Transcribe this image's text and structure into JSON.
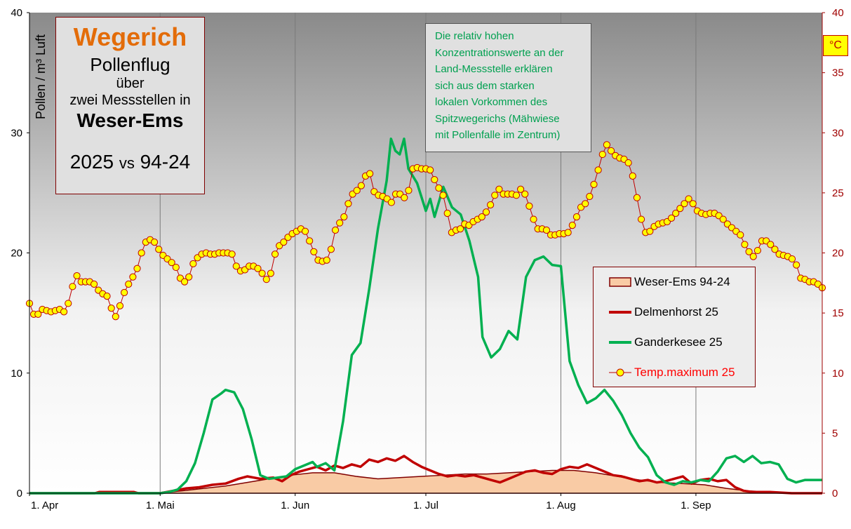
{
  "chart_data": {
    "type": "line",
    "title": "Wegerich",
    "subtitle_lines": [
      "Pollenflug",
      "über",
      "zwei Messstellen in",
      "Weser-Ems"
    ],
    "comparison": {
      "left": "2025",
      "vs": "vs",
      "right": "94-24"
    },
    "ylabel": "Pollen / m³ Luft",
    "y2label": "°C",
    "ylim": [
      0,
      40
    ],
    "y2lim": [
      0,
      40
    ],
    "y_ticks": [
      "0",
      "10",
      "20",
      "30",
      "40"
    ],
    "y2_ticks": [
      "0",
      "5",
      "10",
      "15",
      "20",
      "25",
      "30",
      "35",
      "40"
    ],
    "x_ticks": [
      "1. Apr",
      "1. Mai",
      "1. Jun",
      "1. Jul",
      "1. Aug",
      "1. Sep"
    ],
    "x_tick_days": [
      0,
      30,
      61,
      91,
      122,
      153
    ],
    "x_range_days": [
      0,
      182
    ],
    "grid": "vertical",
    "legend_position": "right",
    "annotation": [
      "Die relativ hohen",
      "Konzentrationswerte  an der",
      "Land-Messstelle  erklären",
      "sich aus dem starken",
      "lokalen Vorkommen des",
      "Spitzwegerichs  (Mähwiese",
      "mit Pollenfalle im Zentrum)"
    ],
    "series": [
      {
        "name": "Weser-Ems 94-24",
        "kind": "area",
        "color": "#f9cba5",
        "edge": "#800000",
        "points": [
          [
            0,
            0
          ],
          [
            30,
            0
          ],
          [
            35,
            0.2
          ],
          [
            40,
            0.4
          ],
          [
            45,
            0.6
          ],
          [
            50,
            0.9
          ],
          [
            55,
            1.2
          ],
          [
            60,
            1.5
          ],
          [
            65,
            1.7
          ],
          [
            70,
            1.7
          ],
          [
            75,
            1.4
          ],
          [
            80,
            1.2
          ],
          [
            85,
            1.3
          ],
          [
            90,
            1.4
          ],
          [
            95,
            1.5
          ],
          [
            100,
            1.6
          ],
          [
            105,
            1.6
          ],
          [
            110,
            1.7
          ],
          [
            115,
            1.8
          ],
          [
            120,
            1.9
          ],
          [
            125,
            1.9
          ],
          [
            130,
            1.7
          ],
          [
            135,
            1.4
          ],
          [
            140,
            1.1
          ],
          [
            145,
            0.9
          ],
          [
            150,
            0.8
          ],
          [
            155,
            0.7
          ],
          [
            160,
            0.4
          ],
          [
            165,
            0.2
          ],
          [
            170,
            0.1
          ],
          [
            175,
            0
          ],
          [
            182,
            0
          ]
        ]
      },
      {
        "name": "Delmenhorst 25",
        "kind": "line",
        "color": "#c00000",
        "points": [
          [
            0,
            0
          ],
          [
            15,
            0
          ],
          [
            16,
            0.1
          ],
          [
            24,
            0.1
          ],
          [
            25,
            0
          ],
          [
            30,
            0
          ],
          [
            33,
            0.2
          ],
          [
            36,
            0.4
          ],
          [
            39,
            0.5
          ],
          [
            42,
            0.7
          ],
          [
            45,
            0.8
          ],
          [
            48,
            1.2
          ],
          [
            50,
            1.4
          ],
          [
            53,
            1.2
          ],
          [
            56,
            1.3
          ],
          [
            58,
            1.0
          ],
          [
            60,
            1.5
          ],
          [
            62,
            1.8
          ],
          [
            64,
            2.0
          ],
          [
            66,
            2.2
          ],
          [
            68,
            1.9
          ],
          [
            70,
            2.3
          ],
          [
            72,
            2.1
          ],
          [
            74,
            2.4
          ],
          [
            76,
            2.2
          ],
          [
            78,
            2.8
          ],
          [
            80,
            2.6
          ],
          [
            82,
            2.9
          ],
          [
            84,
            2.7
          ],
          [
            86,
            3.1
          ],
          [
            88,
            2.6
          ],
          [
            90,
            2.2
          ],
          [
            92,
            1.9
          ],
          [
            94,
            1.6
          ],
          [
            96,
            1.4
          ],
          [
            98,
            1.5
          ],
          [
            100,
            1.4
          ],
          [
            102,
            1.5
          ],
          [
            104,
            1.3
          ],
          [
            106,
            1.1
          ],
          [
            108,
            0.9
          ],
          [
            110,
            1.2
          ],
          [
            112,
            1.5
          ],
          [
            114,
            1.8
          ],
          [
            116,
            1.9
          ],
          [
            118,
            1.7
          ],
          [
            120,
            1.6
          ],
          [
            122,
            2.0
          ],
          [
            124,
            2.2
          ],
          [
            126,
            2.1
          ],
          [
            128,
            2.4
          ],
          [
            130,
            2.1
          ],
          [
            132,
            1.8
          ],
          [
            134,
            1.5
          ],
          [
            136,
            1.4
          ],
          [
            138,
            1.2
          ],
          [
            140,
            1.0
          ],
          [
            142,
            1.1
          ],
          [
            144,
            0.9
          ],
          [
            146,
            1.0
          ],
          [
            148,
            1.2
          ],
          [
            150,
            1.4
          ],
          [
            152,
            0.8
          ],
          [
            154,
            1.1
          ],
          [
            156,
            1.2
          ],
          [
            158,
            1.0
          ],
          [
            160,
            1.1
          ],
          [
            162,
            0.5
          ],
          [
            164,
            0.2
          ],
          [
            166,
            0.1
          ],
          [
            170,
            0.1
          ],
          [
            175,
            0
          ],
          [
            182,
            0
          ]
        ]
      },
      {
        "name": "Ganderkesee 25",
        "kind": "line",
        "color": "#00b050",
        "points": [
          [
            0,
            0
          ],
          [
            30,
            0
          ],
          [
            32,
            0.1
          ],
          [
            34,
            0.3
          ],
          [
            36,
            1.0
          ],
          [
            38,
            2.5
          ],
          [
            40,
            5.0
          ],
          [
            42,
            7.8
          ],
          [
            44,
            8.3
          ],
          [
            45,
            8.6
          ],
          [
            47,
            8.4
          ],
          [
            49,
            7.0
          ],
          [
            51,
            4.5
          ],
          [
            53,
            1.5
          ],
          [
            55,
            1.2
          ],
          [
            57,
            1.3
          ],
          [
            59,
            1.4
          ],
          [
            61,
            2.0
          ],
          [
            63,
            2.3
          ],
          [
            65,
            2.6
          ],
          [
            66,
            2.2
          ],
          [
            68,
            2.5
          ],
          [
            70,
            1.9
          ],
          [
            72,
            6.0
          ],
          [
            74,
            11.5
          ],
          [
            76,
            12.5
          ],
          [
            78,
            17.0
          ],
          [
            80,
            22.0
          ],
          [
            82,
            26.0
          ],
          [
            83,
            29.5
          ],
          [
            84,
            28.5
          ],
          [
            85,
            28.2
          ],
          [
            86,
            29.5
          ],
          [
            87,
            27.0
          ],
          [
            89,
            25.8
          ],
          [
            91,
            23.5
          ],
          [
            92,
            24.5
          ],
          [
            93,
            23.0
          ],
          [
            95,
            25.5
          ],
          [
            97,
            23.8
          ],
          [
            99,
            23.2
          ],
          [
            101,
            21.0
          ],
          [
            103,
            18.0
          ],
          [
            104,
            13.0
          ],
          [
            106,
            11.3
          ],
          [
            108,
            12.0
          ],
          [
            110,
            13.5
          ],
          [
            112,
            12.8
          ],
          [
            114,
            18.0
          ],
          [
            116,
            19.4
          ],
          [
            118,
            19.7
          ],
          [
            120,
            19.0
          ],
          [
            122,
            18.9
          ],
          [
            124,
            11.0
          ],
          [
            126,
            9.0
          ],
          [
            128,
            7.5
          ],
          [
            130,
            7.9
          ],
          [
            132,
            8.6
          ],
          [
            134,
            7.7
          ],
          [
            136,
            6.5
          ],
          [
            138,
            5.0
          ],
          [
            140,
            3.8
          ],
          [
            142,
            3.0
          ],
          [
            144,
            1.5
          ],
          [
            146,
            0.9
          ],
          [
            148,
            0.7
          ],
          [
            150,
            1.0
          ],
          [
            152,
            0.9
          ],
          [
            154,
            1.1
          ],
          [
            156,
            1.0
          ],
          [
            158,
            1.8
          ],
          [
            160,
            2.9
          ],
          [
            162,
            3.1
          ],
          [
            164,
            2.6
          ],
          [
            166,
            3.1
          ],
          [
            168,
            2.5
          ],
          [
            170,
            2.6
          ],
          [
            172,
            2.4
          ],
          [
            174,
            1.2
          ],
          [
            176,
            0.9
          ],
          [
            178,
            1.1
          ],
          [
            180,
            1.1
          ],
          [
            182,
            1.1
          ]
        ]
      },
      {
        "name": "Temp.maximum 25",
        "kind": "line-marker",
        "axis": "right",
        "color": "#c00000",
        "marker_fill": "#ffff00",
        "marker_edge": "#c00000",
        "values": [
          15.8,
          14.9,
          14.9,
          15.3,
          15.2,
          15.1,
          15.2,
          15.3,
          15.1,
          15.8,
          17.2,
          18.1,
          17.6,
          17.6,
          17.6,
          17.4,
          16.9,
          16.6,
          16.4,
          15.4,
          14.7,
          15.6,
          16.7,
          17.4,
          18.0,
          18.7,
          20.0,
          20.9,
          21.1,
          20.9,
          20.3,
          19.8,
          19.5,
          19.2,
          18.8,
          17.9,
          17.6,
          18.0,
          19.1,
          19.6,
          19.9,
          20.0,
          19.9,
          19.9,
          20.0,
          20.0,
          20.0,
          19.9,
          18.9,
          18.5,
          18.6,
          18.9,
          18.9,
          18.7,
          18.3,
          17.8,
          18.3,
          19.9,
          20.6,
          20.9,
          21.3,
          21.6,
          21.8,
          22.0,
          21.8,
          21.0,
          20.1,
          19.4,
          19.3,
          19.4,
          20.3,
          21.9,
          22.5,
          23.0,
          24.1,
          24.9,
          25.2,
          25.6,
          26.4,
          26.6,
          25.1,
          24.8,
          24.7,
          24.5,
          24.2,
          24.9,
          24.9,
          24.6,
          25.2,
          27.0,
          27.1,
          27.0,
          27.0,
          26.9,
          26.1,
          25.4,
          24.8,
          23.3,
          21.7,
          21.9,
          22.0,
          22.4,
          22.3,
          22.6,
          22.8,
          23.0,
          23.4,
          24.0,
          24.8,
          25.3,
          24.9,
          24.9,
          24.9,
          24.8,
          25.3,
          24.9,
          23.9,
          22.8,
          22.0,
          22.0,
          21.9,
          21.5,
          21.5,
          21.6,
          21.6,
          21.7,
          22.3,
          23.0,
          23.8,
          24.1,
          24.7,
          25.7,
          26.9,
          28.2,
          29.0,
          28.5,
          28.1,
          27.9,
          27.8,
          27.5,
          26.4,
          24.6,
          22.8,
          21.7,
          21.8,
          22.2,
          22.4,
          22.5,
          22.6,
          22.9,
          23.3,
          23.7,
          24.1,
          24.5,
          24.1,
          23.5,
          23.3,
          23.2,
          23.3,
          23.3,
          23.1,
          22.8,
          22.4,
          22.1,
          21.8,
          21.5,
          20.7,
          20.1,
          19.7,
          20.2,
          21.0,
          21.0,
          20.7,
          20.3,
          19.9,
          19.8,
          19.7,
          19.5,
          19.0,
          17.9,
          17.8,
          17.6,
          17.6,
          17.4,
          17.1
        ]
      }
    ]
  },
  "colors": {
    "plot_bg_top": "#8a8a8a",
    "plot_bg_bottom": "#ffffff",
    "left_axis": "#000000",
    "right_axis": "#a00000"
  }
}
